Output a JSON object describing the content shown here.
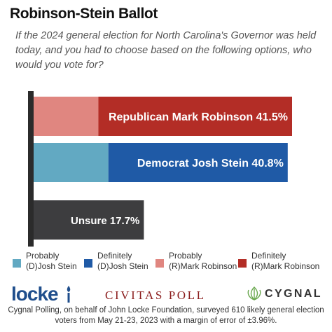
{
  "title": "Robinson-Stein Ballot",
  "subtitle": "If the 2024 general election for North Carolina's Governor was held today, and you had to choose based on the following options, who would you vote for?",
  "chart_data": {
    "type": "bar",
    "orientation": "horizontal",
    "stacked": true,
    "xlim": [
      0,
      45
    ],
    "grid": false,
    "legend_position": "bottom",
    "categories": [
      "Republican Mark Robinson",
      "Democrat Josh Stein",
      "Unsure"
    ],
    "bar_labels": [
      "Republican Mark Robinson 41.5%",
      "Democrat Josh Stein 40.8%",
      "Unsure 17.7%"
    ],
    "totals": [
      41.5,
      40.8,
      17.7
    ],
    "segments": [
      [
        {
          "series": "Probably (R)Mark Robinson",
          "value": 10.4
        },
        {
          "series": "Definitely (R)Mark Robinson",
          "value": 31.1
        }
      ],
      [
        {
          "series": "Probably (D)Josh Stein",
          "value": 12.0
        },
        {
          "series": "Definitely (D)Josh Stein",
          "value": 28.8
        }
      ],
      [
        {
          "series": "Unsure",
          "value": 17.7
        }
      ]
    ],
    "series": [
      {
        "name": "Probably (D)Josh Stein",
        "color": "#62a9c2"
      },
      {
        "name": "Definitely (D)Josh Stein",
        "color": "#1f5aa6"
      },
      {
        "name": "Probably (R)Mark Robinson",
        "color": "#e08680"
      },
      {
        "name": "Definitely (R)Mark Robinson",
        "color": "#b32d26"
      },
      {
        "name": "Unsure",
        "color": "#3d3d3f"
      }
    ]
  },
  "legend": [
    {
      "text": "Probably\n(D)Josh Stein",
      "color": "#62a9c2"
    },
    {
      "text": "Definitely\n(D)Josh Stein",
      "color": "#1f5aa6"
    },
    {
      "text": "Probably\n(R)Mark Robinson",
      "color": "#e08680"
    },
    {
      "text": "Definitely\n(R)Mark Robinson",
      "color": "#b32d26"
    }
  ],
  "logos": {
    "locke": "locke",
    "civitas": "CIVITAS POLL",
    "cygnal": "CYGNAL"
  },
  "footnote": "Cygnal Polling, on behalf of John Locke Foundation, surveyed 610 likely general election voters from May 21-23, 2023 with a margin of error of ±3.96%."
}
